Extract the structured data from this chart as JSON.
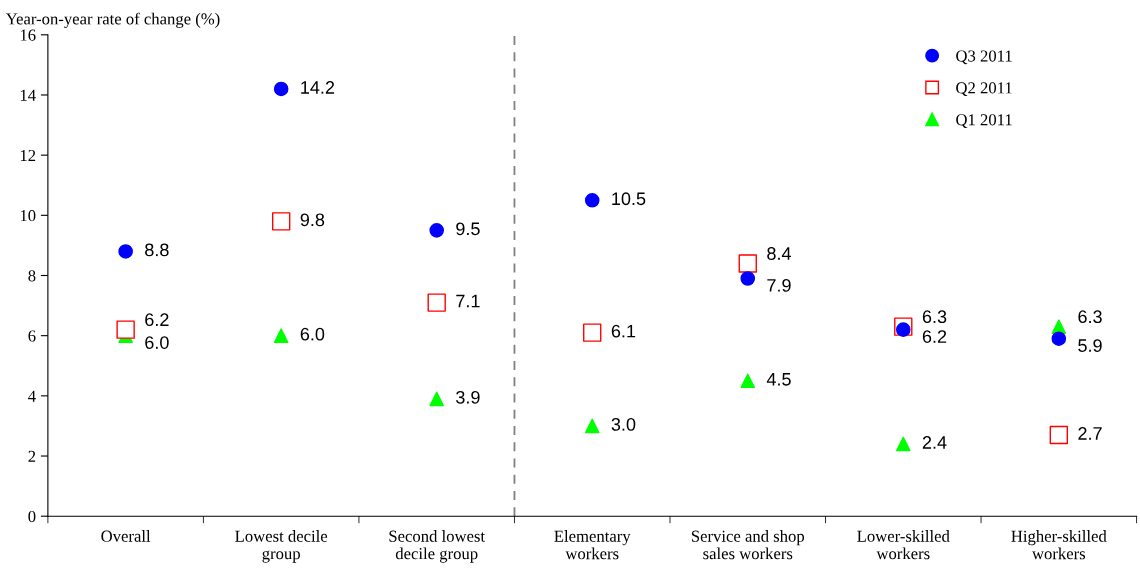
{
  "chart_data": {
    "type": "scatter",
    "ylabel": "Year-on-year rate of change (%)",
    "categories": [
      "Overall",
      "Lowest decile\ngroup",
      "Second lowest\ndecile group",
      "Elementary\nworkers",
      "Service and shop\nsales workers",
      "Lower-skilled\nworkers",
      "Higher-skilled\nworkers"
    ],
    "series": [
      {
        "name": "Q3 2011",
        "color": "#0000ff",
        "marker": "circle",
        "values": [
          8.8,
          14.2,
          9.5,
          10.5,
          7.9,
          6.2,
          5.9
        ],
        "value_labels": [
          "8.8",
          "14.2",
          "9.5",
          "10.5",
          "7.9",
          "6.2",
          "5.9"
        ]
      },
      {
        "name": "Q2 2011",
        "color": "#ff0000",
        "marker": "square",
        "values": [
          6.2,
          9.8,
          7.1,
          6.1,
          8.4,
          6.3,
          2.7
        ],
        "value_labels": [
          "6.2",
          "9.8",
          "7.1",
          "6.1",
          "8.4",
          "6.3",
          "2.7"
        ]
      },
      {
        "name": "Q1 2011",
        "color": "#00ff00",
        "marker": "triangle",
        "values": [
          6.0,
          6.0,
          3.9,
          3.0,
          4.5,
          2.4,
          6.3
        ],
        "value_labels": [
          "6.0",
          "6.0",
          "3.9",
          "3.0",
          "4.5",
          "2.4",
          "6.3"
        ]
      }
    ],
    "ylim": [
      0,
      16
    ],
    "yticks": [
      0,
      2,
      4,
      6,
      8,
      10,
      12,
      14,
      16
    ],
    "grid": false,
    "legend": "top right"
  }
}
